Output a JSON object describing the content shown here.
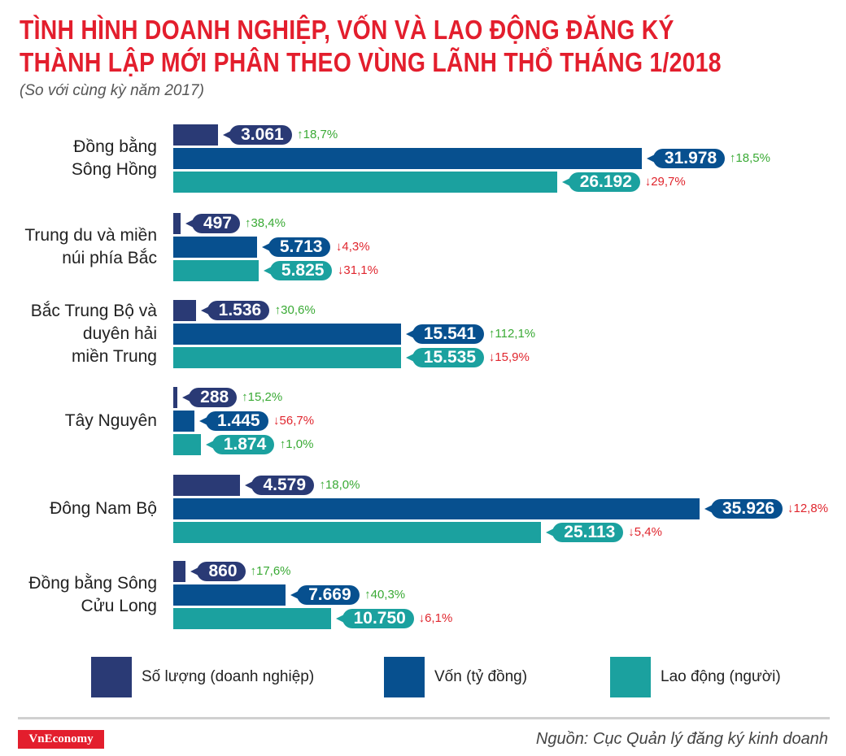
{
  "chart_data": {
    "type": "bar",
    "orientation": "horizontal",
    "title": "TÌNH HÌNH DOANH NGHIỆP, VỐN VÀ LAO ĐỘNG ĐĂNG KÝ THÀNH LẬP MỚI PHÂN THEO VÙNG LÃNH THỔ THÁNG 1/2018",
    "title_lines": [
      "TÌNH HÌNH DOANH NGHIỆP, VỐN VÀ LAO ĐỘNG ĐĂNG KÝ",
      "THÀNH LẬP MỚI PHÂN THEO VÙNG LÃNH THỔ THÁNG 1/2018"
    ],
    "subtitle": "(So với cùng kỳ năm 2017)",
    "categories": [
      "Đồng bằng\nSông Hồng",
      "Trung du và miền\nnúi phía Bắc",
      "Bắc Trung Bộ và\nduyên hải\nmiền Trung",
      "Tây Nguyên",
      "Đông Nam Bộ",
      "Đồng bằng Sông\nCửu Long"
    ],
    "series": [
      {
        "name": "Số lượng (doanh nghiệp)",
        "color": "#2a3a75",
        "values": [
          3061,
          497,
          1536,
          288,
          4579,
          860
        ],
        "labels": [
          "3.061",
          "497",
          "1.536",
          "288",
          "4.579",
          "860"
        ],
        "changes": [
          "18,7%",
          "38,4%",
          "30,6%",
          "15,2%",
          "18,0%",
          "17,6%"
        ],
        "directions": [
          "up",
          "up",
          "up",
          "up",
          "up",
          "up"
        ]
      },
      {
        "name": "Vốn (tỷ đồng)",
        "color": "#07508f",
        "values": [
          31978,
          5713,
          15541,
          1445,
          35926,
          7669
        ],
        "labels": [
          "31.978",
          "5.713",
          "15.541",
          "1.445",
          "35.926",
          "7.669"
        ],
        "changes": [
          "18,5%",
          "4,3%",
          "112,1%",
          "56,7%",
          "12,8%",
          "40,3%"
        ],
        "directions": [
          "up",
          "down",
          "up",
          "down",
          "down",
          "up"
        ]
      },
      {
        "name": "Lao động (người)",
        "color": "#1ba19f",
        "values": [
          26192,
          5825,
          15535,
          1874,
          25113,
          10750
        ],
        "labels": [
          "26.192",
          "5.825",
          "15.535",
          "1.874",
          "25.113",
          "10.750"
        ],
        "changes": [
          "29,7%",
          "31,1%",
          "15,9%",
          "1,0%",
          "5,4%",
          "6,1%"
        ],
        "directions": [
          "down",
          "down",
          "down",
          "up",
          "down",
          "down"
        ]
      }
    ],
    "change_colors": {
      "up": "#3aaa35",
      "down": "#e0262e"
    },
    "grid": false,
    "legend_position": "bottom"
  },
  "source": "Nguồn: Cục Quản lý đăng ký kinh doanh",
  "logo": "VnEconomy"
}
